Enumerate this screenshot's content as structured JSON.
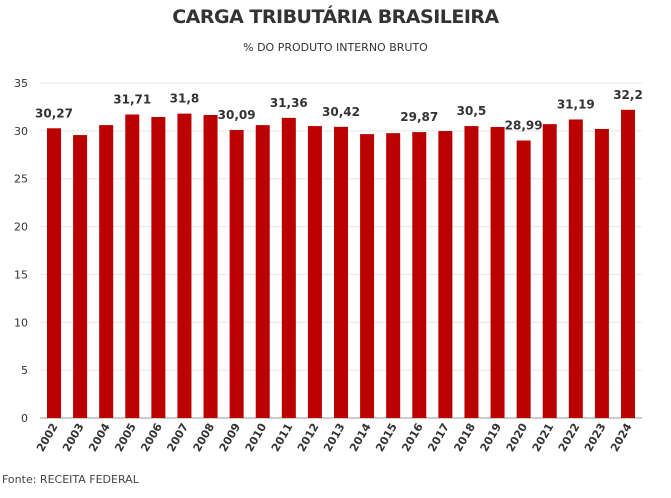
{
  "chart_data": {
    "type": "bar",
    "title": "CARGA TRIBUTÁRIA BRASILEIRA",
    "subtitle": "% DO PRODUTO INTERNO BRUTO",
    "source": "Fonte: RECEITA FEDERAL",
    "xlabel": "",
    "ylabel": "",
    "ylim": [
      0,
      35
    ],
    "yticks": [
      0,
      5,
      10,
      15,
      20,
      25,
      30,
      35
    ],
    "grid": true,
    "bar_color": "#bb0000",
    "categories": [
      "2002",
      "2003",
      "2004",
      "2005",
      "2006",
      "2007",
      "2008",
      "2009",
      "2010",
      "2011",
      "2012",
      "2013",
      "2014",
      "2015",
      "2016",
      "2017",
      "2018",
      "2019",
      "2020",
      "2021",
      "2022",
      "2023",
      "2024"
    ],
    "values": [
      30.27,
      29.56,
      30.6,
      31.71,
      31.45,
      31.8,
      31.66,
      30.09,
      30.6,
      31.36,
      30.5,
      30.42,
      29.66,
      29.76,
      29.87,
      29.98,
      30.5,
      30.4,
      28.99,
      30.7,
      31.19,
      30.2,
      32.2
    ],
    "data_labels": [
      "30,27",
      "",
      "",
      "31,71",
      "",
      "31,8",
      "",
      "30,09",
      "",
      "31,36",
      "",
      "30,42",
      "",
      "",
      "29,87",
      "",
      "30,5",
      "",
      "28,99",
      "",
      "31,19",
      "",
      "32,2"
    ]
  }
}
